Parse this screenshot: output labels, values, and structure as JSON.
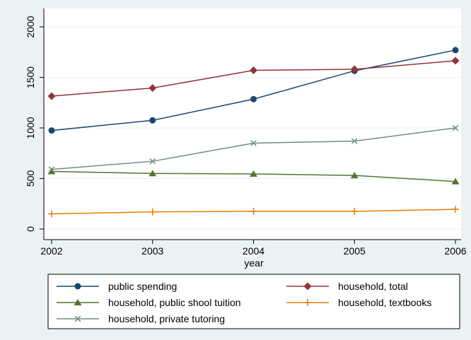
{
  "chart_data": {
    "type": "line",
    "title": "",
    "xlabel": "year",
    "ylabel": "",
    "x": [
      2002,
      2003,
      2004,
      2005,
      2006
    ],
    "xticks": [
      "2002",
      "2003",
      "2004",
      "2005",
      "2006"
    ],
    "yticks": [
      "0",
      "500",
      "1000",
      "1500",
      "2000"
    ],
    "ylim": [
      0,
      2000
    ],
    "xlim": [
      2002,
      2006
    ],
    "grid": "horizontal",
    "legend_position": "bottom",
    "series": [
      {
        "name": "public spending",
        "color": "#1a476f",
        "marker": "circle",
        "values": [
          975,
          1075,
          1285,
          1565,
          1770
        ]
      },
      {
        "name": "household, total",
        "color": "#90353b",
        "marker": "diamond",
        "values": [
          1315,
          1395,
          1570,
          1580,
          1665
        ]
      },
      {
        "name": "household, public shool tuition",
        "color": "#55752f",
        "marker": "triangle",
        "values": [
          570,
          550,
          545,
          530,
          470
        ]
      },
      {
        "name": "household, textbooks",
        "color": "#e37e00",
        "marker": "plus",
        "values": [
          150,
          170,
          175,
          175,
          195
        ]
      },
      {
        "name": "household, private tutoring",
        "color": "#6e8e84",
        "marker": "x",
        "values": [
          590,
          670,
          850,
          870,
          1000
        ]
      }
    ]
  }
}
